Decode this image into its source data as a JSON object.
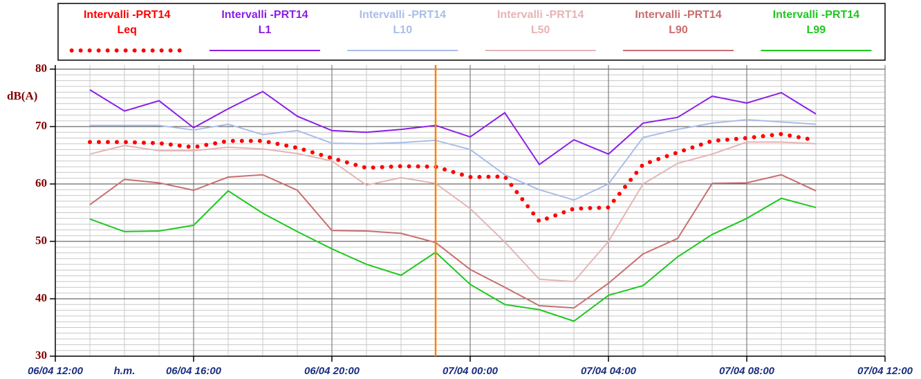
{
  "chart_data": {
    "type": "line",
    "y_label": "dB(A)",
    "x_label": "h.m.",
    "x": [
      1,
      2,
      3,
      4,
      5,
      6,
      7,
      8,
      9,
      10,
      11,
      12,
      13,
      14,
      15,
      16,
      17,
      18,
      19,
      20,
      21,
      22
    ],
    "xlim": [
      0,
      24
    ],
    "xticks": [
      {
        "value": 0,
        "label": "06/04 12:00"
      },
      {
        "value": 4,
        "label": "06/04 16:00"
      },
      {
        "value": 8,
        "label": "06/04 20:00"
      },
      {
        "value": 12,
        "label": "07/04 00:00"
      },
      {
        "value": 16,
        "label": "07/04 04:00"
      },
      {
        "value": 20,
        "label": "07/04 08:00"
      },
      {
        "value": 24,
        "label": "07/04 12:00"
      }
    ],
    "ylim": [
      30,
      80
    ],
    "yticks": [
      30,
      40,
      50,
      60,
      70,
      80
    ],
    "minor_xstep": 1,
    "minor_ystep": 1,
    "grid": true,
    "cursor": {
      "x": 11,
      "color": "#ff8000"
    },
    "series": [
      {
        "group": "Intervalli -PRT14",
        "name": "Leq",
        "color": "#ff0000",
        "style": "dotted",
        "values": [
          67.3,
          67.3,
          67.1,
          66.4,
          67.5,
          67.5,
          66.3,
          64.5,
          62.8,
          63.1,
          63.0,
          61.2,
          61.3,
          53.5,
          55.7,
          55.9,
          63.4,
          65.5,
          67.5,
          68.0,
          68.7,
          67.6
        ]
      },
      {
        "group": "Intervalli -PRT14",
        "name": "L1",
        "color": "#8a1ee6",
        "style": "solid",
        "values": [
          76.4,
          72.7,
          74.5,
          69.8,
          73.1,
          76.1,
          71.8,
          69.3,
          69.0,
          69.5,
          70.2,
          68.2,
          72.4,
          63.4,
          67.7,
          65.2,
          70.6,
          71.6,
          75.3,
          74.1,
          75.9,
          72.2
        ]
      },
      {
        "group": "Intervalli -PRT14",
        "name": "L10",
        "color": "#a9bde8",
        "style": "solid",
        "values": [
          70.2,
          70.2,
          70.2,
          69.4,
          70.4,
          68.6,
          69.3,
          67.1,
          67.0,
          67.2,
          67.6,
          66.0,
          61.6,
          59.0,
          57.2,
          60.0,
          68.1,
          69.5,
          70.6,
          71.2,
          70.8,
          70.4
        ]
      },
      {
        "group": "Intervalli -PRT14",
        "name": "L50",
        "color": "#e6b4b4",
        "style": "solid",
        "values": [
          65.2,
          66.7,
          65.8,
          65.8,
          66.4,
          66.1,
          65.3,
          64.0,
          59.8,
          61.1,
          60.1,
          55.7,
          49.9,
          43.4,
          43.0,
          50.0,
          60.0,
          63.6,
          65.2,
          67.3,
          67.3,
          67.0
        ]
      },
      {
        "group": "Intervalli -PRT14",
        "name": "L90",
        "color": "#c86e6e",
        "style": "solid",
        "values": [
          56.4,
          60.8,
          60.2,
          58.9,
          61.2,
          61.6,
          58.9,
          51.9,
          51.8,
          51.4,
          49.8,
          45.1,
          42.0,
          38.8,
          38.4,
          42.7,
          47.8,
          50.5,
          60.1,
          60.2,
          61.6,
          58.8
        ]
      },
      {
        "group": "Intervalli -PRT14",
        "name": "L99",
        "color": "#1ec81e",
        "style": "solid",
        "values": [
          53.9,
          51.7,
          51.8,
          52.8,
          58.8,
          54.9,
          51.7,
          48.7,
          46.0,
          44.1,
          48.1,
          42.5,
          39.0,
          38.1,
          36.1,
          40.6,
          42.3,
          47.3,
          51.2,
          54.0,
          57.5,
          55.9
        ]
      }
    ]
  }
}
